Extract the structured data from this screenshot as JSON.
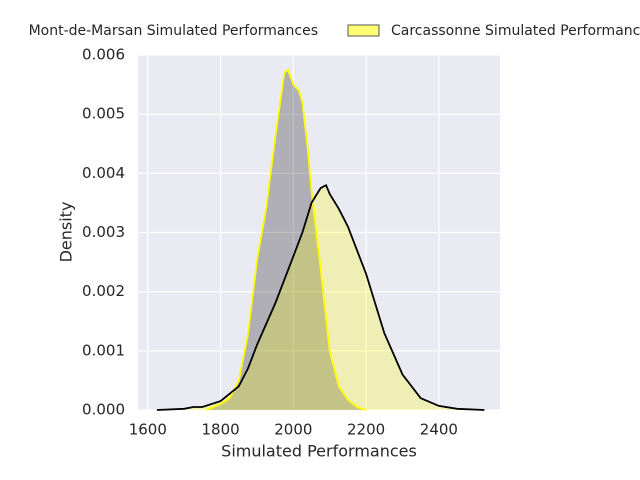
{
  "chart_data": {
    "type": "kde",
    "xlabel": "Simulated Performances",
    "ylabel": "Density",
    "xlim": [
      1573,
      2568
    ],
    "ylim": [
      0,
      0.006
    ],
    "xticks": [
      1600,
      1800,
      2000,
      2200,
      2400
    ],
    "yticks": [
      {
        "value": 0,
        "label": "0.000"
      },
      {
        "value": 0.001,
        "label": "0.001"
      },
      {
        "value": 0.002,
        "label": "0.002"
      },
      {
        "value": 0.003,
        "label": "0.003"
      },
      {
        "value": 0.004,
        "label": "0.004"
      },
      {
        "value": 0.005,
        "label": "0.005"
      },
      {
        "value": 0.006,
        "label": "0.006"
      }
    ],
    "grid": true,
    "legend": "top",
    "series": [
      {
        "name": "Mont-de-Marsan Simulated Performances",
        "color": "#000000",
        "edge_color": "#ffff00",
        "x": [
          1760,
          1800,
          1825,
          1850,
          1875,
          1900,
          1925,
          1950,
          1975,
          1985,
          2000,
          2015,
          2025,
          2040,
          2050,
          2075,
          2100,
          2125,
          2150,
          2175,
          2200
        ],
        "values": [
          0,
          0.0001,
          0.0002,
          0.0005,
          0.00127,
          0.00253,
          0.0034,
          0.0046,
          0.0057,
          0.00575,
          0.0055,
          0.0054,
          0.0052,
          0.0044,
          0.0037,
          0.0024,
          0.001,
          0.0004,
          0.00017,
          5e-05,
          0
        ]
      },
      {
        "name": "Carcassonne Simulated Performances",
        "color": "#ffff00",
        "edge_color": "#000000",
        "x": [
          1625,
          1700,
          1725,
          1750,
          1800,
          1850,
          1875,
          1900,
          1950,
          2000,
          2025,
          2050,
          2075,
          2090,
          2100,
          2125,
          2150,
          2200,
          2250,
          2300,
          2350,
          2400,
          2450,
          2525
        ],
        "values": [
          0,
          2e-05,
          5e-05,
          5e-05,
          0.00015,
          0.0004,
          0.0007,
          0.0011,
          0.0018,
          0.0026,
          0.003,
          0.0035,
          0.00375,
          0.0038,
          0.00365,
          0.0034,
          0.0031,
          0.0023,
          0.0013,
          0.0006,
          0.0002,
          7e-05,
          2e-05,
          0
        ]
      }
    ]
  }
}
